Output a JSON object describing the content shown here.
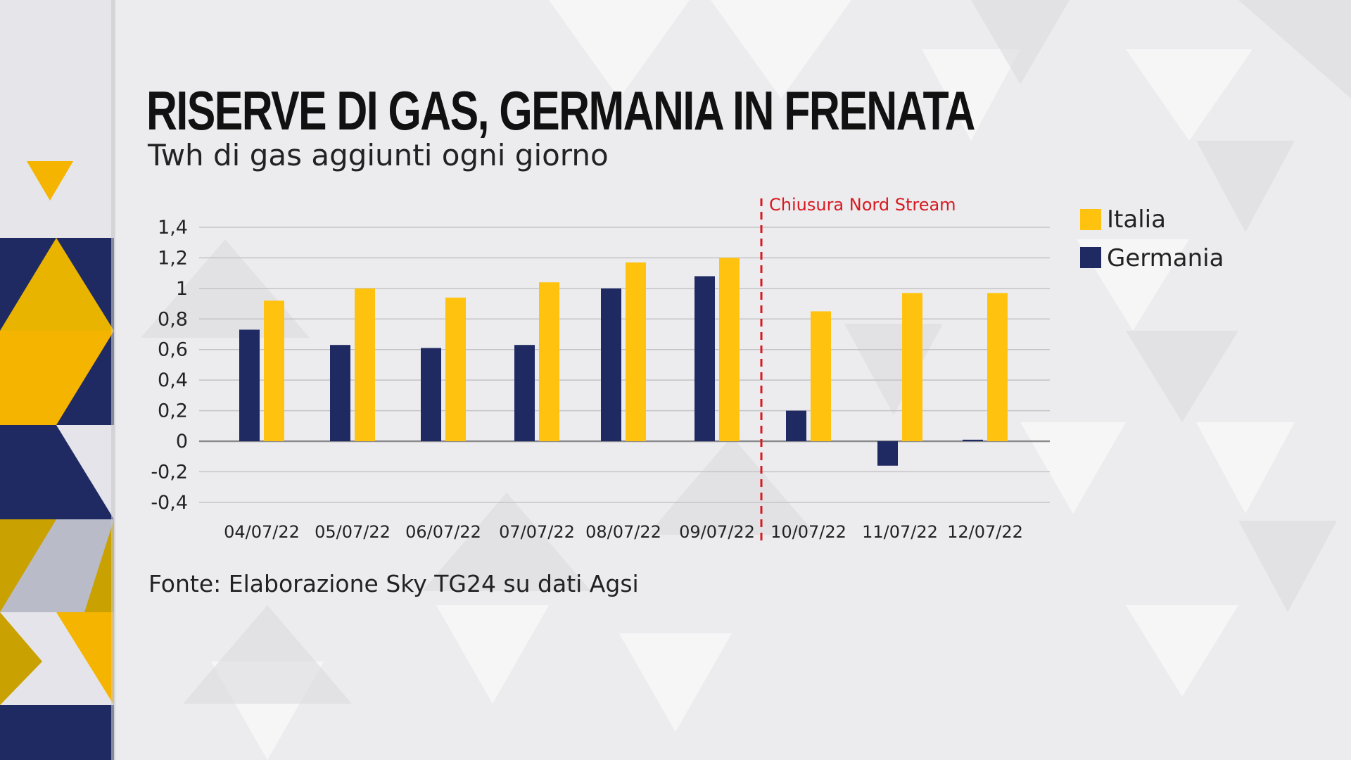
{
  "title": "RISERVE DI GAS, GERMANIA IN FRENATA",
  "subtitle": "Twh di gas aggiunti ogni giorno",
  "source": "Fonte: Elaborazione Sky TG24 su dati Agsi",
  "colors": {
    "italia": "#ffc20e",
    "germania": "#1f2a63",
    "annotation": "#d71920",
    "grid": "#c4c4c8",
    "background": "#ececee",
    "band_navy": "#1f2a63",
    "band_yellow": "#f5b400"
  },
  "chart_data": {
    "type": "bar",
    "title": "RISERVE DI GAS, GERMANIA IN FRENATA",
    "subtitle": "Twh di gas aggiunti ogni giorno",
    "xlabel": "",
    "ylabel": "",
    "ylim": [
      -0.4,
      1.4
    ],
    "yticks": [
      1.4,
      1.2,
      1,
      0.8,
      0.6,
      0.4,
      0.2,
      0,
      -0.2,
      -0.4
    ],
    "ytick_labels": [
      "1,4",
      "1,2",
      "1",
      "0,8",
      "0,6",
      "0,4",
      "0,2",
      "0",
      "-0,2",
      "-0,4"
    ],
    "grid": true,
    "legend_position": "right",
    "categories": [
      "04/07/22",
      "05/07/22",
      "06/07/22",
      "07/07/22",
      "08/07/22",
      "09/07/22",
      "10/07/22",
      "11/07/22",
      "12/07/22"
    ],
    "series": [
      {
        "name": "Germania",
        "color": "#1f2a63",
        "values": [
          0.73,
          0.63,
          0.61,
          0.63,
          1.0,
          1.08,
          0.2,
          -0.16,
          0.01
        ]
      },
      {
        "name": "Italia",
        "color": "#ffc20e",
        "values": [
          0.92,
          1.0,
          0.94,
          1.04,
          1.17,
          1.2,
          0.85,
          0.97,
          0.97
        ]
      }
    ],
    "annotation": {
      "label": "Chiusura Nord Stream",
      "between": [
        "09/07/22",
        "10/07/22"
      ]
    }
  }
}
